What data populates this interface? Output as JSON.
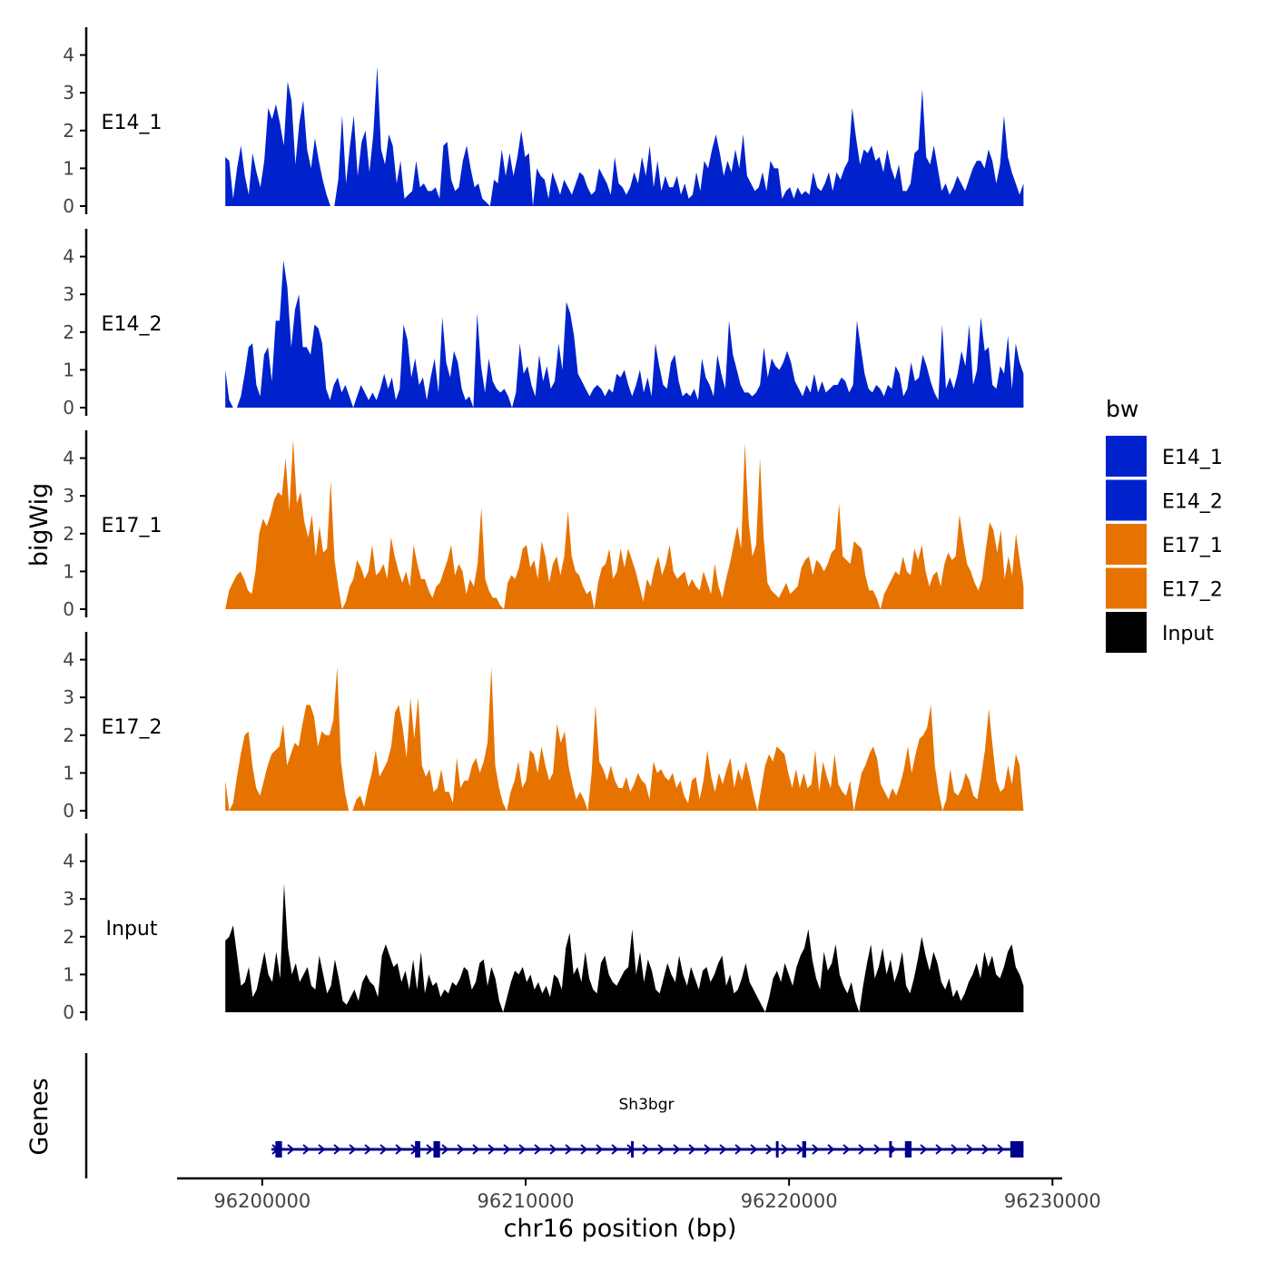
{
  "chart_data": {
    "type": "area",
    "title": "",
    "ylabel": "bigWig",
    "xlabel": "chr16 position (bp)",
    "ylim": [
      0,
      4.6
    ],
    "yticks": [
      0,
      1,
      2,
      3,
      4
    ],
    "xlim": [
      96196800,
      96230300
    ],
    "xticks": [
      96200000,
      96210000,
      96220000,
      96230000
    ],
    "xtick_labels": [
      "96200000",
      "96210000",
      "96220000",
      "96230000"
    ],
    "x_range_data": [
      96198600,
      96228900
    ],
    "legend": {
      "title": "bw",
      "position": "right",
      "entries": [
        {
          "label": "E14_1",
          "color": "#0022CC"
        },
        {
          "label": "E14_2",
          "color": "#0022CC"
        },
        {
          "label": "E17_1",
          "color": "#E67300"
        },
        {
          "label": "E17_2",
          "color": "#E67300"
        },
        {
          "label": "Input",
          "color": "#000000"
        }
      ]
    },
    "series": [
      {
        "name": "E14_1",
        "color": "#0022CC",
        "values": [
          1.3,
          1.2,
          0.2,
          1.0,
          1.6,
          0.8,
          0.3,
          1.4,
          0.9,
          0.5,
          1.2,
          2.6,
          2.3,
          2.7,
          2.2,
          1.6,
          3.3,
          2.8,
          1.1,
          2.2,
          2.8,
          1.5,
          1.0,
          1.8,
          1.2,
          0.7,
          0.3,
          0.0,
          0.0,
          0.7,
          2.4,
          0.6,
          1.6,
          2.4,
          0.8,
          1.7,
          2.0,
          0.9,
          1.9,
          3.7,
          1.5,
          1.1,
          1.9,
          1.6,
          0.6,
          1.2,
          0.2,
          0.3,
          0.4,
          1.2,
          0.5,
          0.6,
          0.4,
          0.4,
          0.5,
          0.2,
          1.6,
          1.7,
          0.7,
          0.4,
          0.5,
          1.2,
          1.6,
          1.0,
          0.5,
          0.6,
          0.2,
          0.1,
          0.0,
          0.7,
          0.6,
          1.5,
          0.8,
          1.4,
          0.8,
          1.3,
          2.0,
          1.3,
          1.4,
          0.0,
          1.0,
          0.8,
          0.7,
          0.2,
          0.9,
          0.6,
          0.3,
          0.7,
          0.5,
          0.3,
          0.6,
          0.9,
          0.8,
          0.5,
          0.3,
          0.4,
          1.0,
          0.8,
          0.6,
          0.3,
          1.3,
          0.6,
          0.5,
          0.3,
          0.5,
          0.9,
          0.6,
          1.3,
          0.8,
          1.6,
          0.5,
          1.2,
          0.4,
          0.8,
          0.5,
          0.5,
          0.8,
          0.3,
          0.6,
          0.2,
          0.3,
          0.9,
          0.4,
          1.2,
          1.0,
          1.5,
          1.9,
          1.4,
          0.8,
          1.2,
          0.9,
          1.5,
          1.0,
          1.9,
          0.8,
          0.6,
          0.4,
          0.5,
          0.9,
          0.4,
          1.2,
          1.0,
          1.0,
          0.2,
          0.4,
          0.5,
          0.2,
          0.5,
          0.3,
          0.4,
          0.3,
          0.9,
          0.5,
          0.4,
          0.6,
          0.9,
          0.4,
          0.9,
          0.7,
          1.0,
          1.2,
          2.6,
          1.8,
          1.1,
          1.5,
          1.4,
          1.6,
          1.2,
          1.3,
          0.9,
          1.5,
          1.0,
          0.7,
          1.1,
          0.4,
          0.4,
          0.6,
          1.4,
          1.5,
          3.1,
          1.3,
          1.1,
          1.6,
          1.0,
          0.4,
          0.6,
          0.3,
          0.5,
          0.8,
          0.6,
          0.4,
          0.7,
          1.0,
          1.2,
          1.2,
          1.0,
          1.5,
          1.2,
          0.6,
          1.1,
          2.4,
          1.3,
          0.9,
          0.6,
          0.3,
          0.6
        ]
      },
      {
        "name": "E14_2",
        "color": "#0022CC",
        "values": [
          1.0,
          0.2,
          0.0,
          0.0,
          0.3,
          0.9,
          1.6,
          1.7,
          0.6,
          0.3,
          1.4,
          1.6,
          0.7,
          2.3,
          2.3,
          3.9,
          3.2,
          1.6,
          2.6,
          3.0,
          1.6,
          1.6,
          1.4,
          2.2,
          2.1,
          1.7,
          0.5,
          0.2,
          0.6,
          0.8,
          0.4,
          0.6,
          0.3,
          0.0,
          0.3,
          0.6,
          0.4,
          0.2,
          0.4,
          0.2,
          0.5,
          0.9,
          0.5,
          0.8,
          0.2,
          0.5,
          2.2,
          1.8,
          0.8,
          1.3,
          0.6,
          0.8,
          0.2,
          0.8,
          1.3,
          0.4,
          2.4,
          1.2,
          0.8,
          1.5,
          1.2,
          0.5,
          0.2,
          0.3,
          0.0,
          2.5,
          1.1,
          0.4,
          1.3,
          0.7,
          0.5,
          0.4,
          0.5,
          0.3,
          0.0,
          0.4,
          1.7,
          0.9,
          1.1,
          0.6,
          0.3,
          1.4,
          0.7,
          1.1,
          0.5,
          0.7,
          1.7,
          1.0,
          2.8,
          2.5,
          1.9,
          0.9,
          0.7,
          0.5,
          0.3,
          0.5,
          0.6,
          0.5,
          0.3,
          0.5,
          0.4,
          0.9,
          0.8,
          1.0,
          0.6,
          0.3,
          0.6,
          1.0,
          0.4,
          0.8,
          0.3,
          1.7,
          1.1,
          0.6,
          0.5,
          1.2,
          1.4,
          0.7,
          0.3,
          0.4,
          0.3,
          0.5,
          0.2,
          1.3,
          0.8,
          0.6,
          0.3,
          1.4,
          0.9,
          0.5,
          2.3,
          1.4,
          1.0,
          0.6,
          0.4,
          0.4,
          0.3,
          0.4,
          0.6,
          1.6,
          0.8,
          1.3,
          1.1,
          1.0,
          1.2,
          1.5,
          1.2,
          0.7,
          0.5,
          0.3,
          0.6,
          0.4,
          0.9,
          0.4,
          0.7,
          0.4,
          0.5,
          0.6,
          0.6,
          0.8,
          0.7,
          0.4,
          0.6,
          2.3,
          1.6,
          0.9,
          0.5,
          0.4,
          0.6,
          0.5,
          0.3,
          0.6,
          0.5,
          1.1,
          0.9,
          0.3,
          0.5,
          1.2,
          0.7,
          0.8,
          1.4,
          1.1,
          0.7,
          0.4,
          0.2,
          2.2,
          0.5,
          0.8,
          0.5,
          0.9,
          1.5,
          1.1,
          2.2,
          0.6,
          1.0,
          2.4,
          1.5,
          1.6,
          0.6,
          0.5,
          1.1,
          0.9,
          1.9,
          0.5,
          1.7,
          1.2,
          0.9
        ]
      },
      {
        "name": "E17_1",
        "color": "#E67300",
        "values": [
          0.0,
          0.5,
          0.7,
          0.9,
          1.0,
          0.8,
          0.5,
          0.4,
          1.0,
          2.0,
          2.4,
          2.2,
          2.5,
          2.9,
          3.1,
          3.0,
          4.0,
          2.6,
          4.5,
          2.8,
          3.1,
          2.3,
          1.9,
          2.5,
          1.4,
          2.2,
          1.5,
          1.6,
          3.4,
          1.3,
          0.6,
          0.0,
          0.2,
          0.6,
          0.8,
          1.3,
          1.1,
          0.8,
          1.0,
          1.7,
          0.9,
          1.0,
          1.2,
          0.8,
          1.9,
          1.4,
          1.0,
          0.7,
          1.0,
          0.6,
          1.7,
          1.2,
          0.8,
          0.8,
          0.5,
          0.3,
          0.6,
          0.7,
          1.0,
          1.3,
          1.7,
          0.9,
          1.2,
          1.0,
          0.4,
          0.8,
          0.6,
          1.2,
          2.7,
          0.8,
          0.5,
          0.3,
          0.3,
          0.1,
          0.0,
          0.7,
          0.9,
          0.8,
          1.1,
          1.6,
          1.7,
          1.1,
          1.3,
          0.8,
          1.8,
          1.4,
          0.7,
          1.2,
          1.4,
          0.9,
          1.4,
          2.6,
          1.4,
          1.0,
          0.9,
          0.6,
          0.4,
          0.5,
          0.0,
          0.7,
          1.1,
          1.2,
          1.6,
          0.8,
          1.0,
          1.6,
          1.1,
          1.6,
          1.3,
          1.0,
          0.6,
          0.2,
          0.8,
          0.6,
          1.1,
          1.4,
          0.9,
          1.2,
          1.7,
          1.0,
          0.8,
          0.9,
          1.0,
          0.6,
          0.8,
          0.6,
          0.5,
          1.0,
          0.7,
          0.4,
          1.2,
          0.6,
          0.3,
          0.8,
          1.2,
          1.7,
          2.2,
          1.6,
          4.4,
          2.3,
          1.4,
          1.7,
          4.0,
          1.9,
          0.7,
          0.5,
          0.4,
          0.3,
          0.5,
          0.7,
          0.4,
          0.5,
          0.6,
          1.1,
          1.3,
          1.4,
          0.9,
          1.3,
          1.2,
          1.0,
          1.2,
          1.5,
          1.6,
          2.8,
          1.4,
          1.3,
          1.2,
          1.8,
          1.7,
          1.6,
          0.9,
          0.5,
          0.5,
          0.3,
          0.0,
          0.4,
          0.6,
          0.8,
          1.0,
          0.9,
          1.4,
          1.0,
          0.9,
          1.6,
          1.3,
          1.7,
          1.0,
          0.6,
          0.9,
          1.0,
          0.6,
          1.2,
          1.5,
          1.3,
          1.4,
          2.5,
          1.8,
          1.2,
          1.0,
          0.7,
          0.5,
          0.8,
          1.6,
          2.3,
          2.1,
          1.5,
          2.1,
          0.8,
          1.4,
          0.9,
          2.0,
          1.3,
          0.6
        ]
      },
      {
        "name": "E17_2",
        "color": "#E67300",
        "values": [
          0.8,
          0.0,
          0.2,
          0.9,
          1.5,
          2.0,
          2.1,
          1.2,
          0.6,
          0.4,
          0.8,
          1.2,
          1.5,
          1.6,
          1.7,
          2.3,
          1.2,
          1.5,
          1.8,
          1.7,
          2.3,
          2.8,
          2.8,
          2.5,
          1.7,
          2.1,
          2.0,
          2.0,
          2.4,
          3.8,
          1.3,
          0.5,
          0.0,
          0.0,
          0.3,
          0.4,
          0.1,
          0.6,
          1.0,
          1.6,
          0.9,
          1.1,
          1.3,
          1.7,
          2.6,
          2.8,
          2.2,
          1.4,
          3.0,
          1.9,
          3.0,
          1.2,
          0.9,
          1.1,
          0.5,
          0.6,
          1.1,
          0.5,
          0.5,
          0.2,
          1.4,
          0.6,
          0.8,
          0.8,
          1.2,
          1.4,
          1.0,
          1.3,
          1.8,
          3.8,
          1.2,
          0.6,
          0.2,
          0.0,
          0.5,
          0.8,
          1.3,
          0.6,
          0.8,
          1.6,
          1.5,
          1.0,
          1.7,
          1.2,
          0.8,
          1.0,
          2.3,
          1.8,
          2.1,
          1.2,
          0.7,
          0.3,
          0.5,
          0.3,
          0.0,
          1.0,
          2.8,
          1.3,
          1.1,
          0.8,
          1.2,
          0.8,
          0.6,
          0.6,
          0.9,
          0.5,
          0.7,
          1.0,
          0.8,
          0.7,
          0.3,
          1.3,
          1.0,
          1.1,
          0.9,
          0.8,
          1.0,
          0.6,
          0.8,
          0.4,
          0.2,
          0.8,
          0.9,
          0.3,
          0.8,
          1.6,
          0.9,
          0.5,
          1.0,
          0.7,
          1.1,
          1.4,
          0.6,
          1.1,
          0.8,
          1.3,
          0.9,
          0.4,
          0.0,
          0.6,
          1.2,
          1.5,
          1.3,
          1.7,
          1.6,
          1.5,
          1.0,
          0.6,
          1.1,
          0.6,
          1.0,
          0.6,
          0.7,
          1.6,
          0.5,
          1.3,
          0.9,
          0.6,
          1.5,
          0.7,
          0.5,
          0.4,
          0.8,
          0.0,
          0.5,
          1.0,
          1.2,
          1.5,
          1.7,
          1.4,
          0.7,
          0.5,
          0.3,
          0.6,
          0.4,
          0.7,
          1.1,
          1.7,
          1.0,
          1.5,
          1.9,
          2.0,
          2.2,
          2.8,
          1.2,
          0.5,
          0.0,
          0.3,
          1.1,
          0.5,
          0.4,
          0.6,
          1.0,
          0.8,
          0.4,
          0.3,
          0.9,
          1.6,
          2.7,
          1.7,
          0.8,
          0.5,
          0.6,
          1.2,
          0.7,
          1.5,
          1.2,
          0.0
        ]
      },
      {
        "name": "Input",
        "color": "#000000",
        "values": [
          1.9,
          2.0,
          2.3,
          1.5,
          0.7,
          0.8,
          1.2,
          0.4,
          0.6,
          1.1,
          1.6,
          1.0,
          0.8,
          1.6,
          0.9,
          3.4,
          1.7,
          1.0,
          1.3,
          0.8,
          1.0,
          1.2,
          0.7,
          0.6,
          1.5,
          1.0,
          0.5,
          0.7,
          1.4,
          0.9,
          0.3,
          0.2,
          0.4,
          0.6,
          0.3,
          0.8,
          1.0,
          0.8,
          0.7,
          0.4,
          1.5,
          1.8,
          1.5,
          1.2,
          1.3,
          0.8,
          1.1,
          0.6,
          1.4,
          0.6,
          1.6,
          0.5,
          1.0,
          0.7,
          0.8,
          0.4,
          0.6,
          0.5,
          0.8,
          0.7,
          0.9,
          1.2,
          1.1,
          0.6,
          0.8,
          1.3,
          1.4,
          0.7,
          1.2,
          0.9,
          0.3,
          0.0,
          0.4,
          0.8,
          1.1,
          1.0,
          1.2,
          0.8,
          1.0,
          0.6,
          0.8,
          0.5,
          0.7,
          0.4,
          1.0,
          0.9,
          0.6,
          1.7,
          2.1,
          1.0,
          1.2,
          0.8,
          1.6,
          0.9,
          0.6,
          0.5,
          1.3,
          1.5,
          1.0,
          0.8,
          0.7,
          0.9,
          1.1,
          1.2,
          2.2,
          1.0,
          1.6,
          0.8,
          1.4,
          1.1,
          0.6,
          0.5,
          0.9,
          1.3,
          1.0,
          0.8,
          1.5,
          1.0,
          0.7,
          1.2,
          0.9,
          0.6,
          1.1,
          1.2,
          0.8,
          1.0,
          1.3,
          1.5,
          0.7,
          1.0,
          0.5,
          0.6,
          0.9,
          1.3,
          0.8,
          0.6,
          0.4,
          0.2,
          0.0,
          0.4,
          0.9,
          1.1,
          0.8,
          1.3,
          1.0,
          0.7,
          1.2,
          1.5,
          1.7,
          2.2,
          1.4,
          0.9,
          0.6,
          1.6,
          1.1,
          1.3,
          1.8,
          1.0,
          0.7,
          0.5,
          0.8,
          0.3,
          0.0,
          0.7,
          1.3,
          1.8,
          0.9,
          1.2,
          1.7,
          1.0,
          1.4,
          0.8,
          1.1,
          1.6,
          0.7,
          0.5,
          0.9,
          1.4,
          2.0,
          1.5,
          1.1,
          1.6,
          1.3,
          0.8,
          0.6,
          0.9,
          0.4,
          0.6,
          0.3,
          0.5,
          0.8,
          1.0,
          1.3,
          0.9,
          1.6,
          1.2,
          1.5,
          1.0,
          0.9,
          1.2,
          1.6,
          1.8,
          1.2,
          1.0,
          0.7
        ]
      }
    ],
    "genes": {
      "name": "Sh3bgr",
      "color": "#00008B",
      "strand": "+",
      "start": 96200350,
      "end": 96228900,
      "exons": [
        [
          96200500,
          96200750
        ],
        [
          96205800,
          96206000
        ],
        [
          96206500,
          96206750
        ],
        [
          96214000,
          96214080
        ],
        [
          96219500,
          96219580
        ],
        [
          96220500,
          96220650
        ],
        [
          96223800,
          96223880
        ],
        [
          96224400,
          96224650
        ],
        [
          96228400,
          96228900
        ]
      ]
    },
    "track_panel_label": "Genes"
  }
}
